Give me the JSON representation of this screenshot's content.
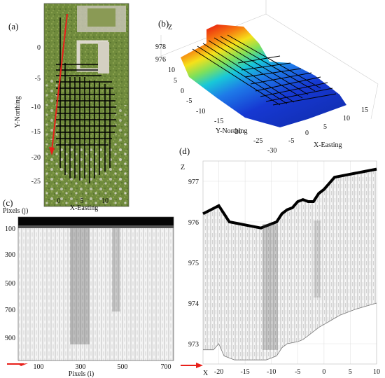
{
  "panels": {
    "a": {
      "letter": "(a)",
      "ylabel": "Y-Northing",
      "xlabel": "X-Easting",
      "yticks": [
        "0",
        "-5",
        "-10",
        "-15",
        "-20",
        "-25"
      ],
      "xticks": [
        "0",
        "5",
        "10"
      ]
    },
    "b": {
      "letter": "(b)",
      "zlabel": "Z",
      "zticks": [
        "978",
        "976"
      ],
      "ylabel": "Y-Northing",
      "xlabel": "X-Easting",
      "yticks": [
        "10",
        "5",
        "0",
        "-5",
        "-10",
        "-15",
        "-20",
        "-25",
        "-30"
      ],
      "xticks": [
        "-5",
        "0",
        "5",
        "10",
        "15"
      ],
      "colors": {
        "high": "#e81c10",
        "mid": "#f5e11a",
        "low": "#1638d2"
      }
    },
    "c": {
      "letter": "(c)",
      "ylabel": "Pixels (j)",
      "xlabel": "Pixels (i)",
      "yticks": [
        "100",
        "300",
        "500",
        "700",
        "900"
      ],
      "xticks": [
        "100",
        "300",
        "500",
        "700"
      ]
    },
    "d": {
      "letter": "(d)",
      "zlabel": "Z",
      "xlabel": "X",
      "yticks": [
        "977",
        "976",
        "975",
        "974",
        "973"
      ],
      "xticks": [
        "-20",
        "-15",
        "-10",
        "-5",
        "0",
        "5",
        "10"
      ]
    }
  },
  "colors": {
    "arrow": "#e8201a",
    "grid_lines": "#000000"
  },
  "chart_data": [
    {
      "type": "surface",
      "panel": "b",
      "zlabel": "Z",
      "xlabel": "X-Easting",
      "ylabel": "Y-Northing",
      "zlim": [
        975,
        979
      ],
      "colormap": "jet",
      "x_ticks": [
        -5,
        0,
        5,
        10,
        15
      ],
      "y_ticks": [
        10,
        5,
        0,
        -5,
        -10,
        -15,
        -20,
        -25,
        -30
      ],
      "z_ticks": [
        976,
        978
      ]
    },
    {
      "type": "line",
      "panel": "d",
      "zlabel": "Z",
      "xlabel": "X",
      "xlim": [
        -23,
        10
      ],
      "ylim": [
        972.5,
        977.5
      ],
      "x_ticks": [
        -20,
        -15,
        -10,
        -5,
        0,
        5,
        10
      ],
      "y_ticks": [
        973,
        974,
        975,
        976,
        977
      ],
      "series": [
        {
          "x": [
            -23,
            -21.5,
            -20,
            -19,
            -18,
            -16,
            -14,
            -12,
            -11,
            -10,
            -9,
            -8,
            -7,
            -6,
            -5,
            -4,
            -3,
            -2,
            -1,
            0,
            1,
            2,
            4,
            6,
            8,
            10
          ],
          "y": [
            976.2,
            976.3,
            976.4,
            976.2,
            976.0,
            975.95,
            975.9,
            975.85,
            975.9,
            975.95,
            976.0,
            976.2,
            976.3,
            976.35,
            976.5,
            976.55,
            976.5,
            976.5,
            976.7,
            976.8,
            976.95,
            977.1,
            977.15,
            977.2,
            977.25,
            977.3
          ]
        },
        {
          "x": [
            -23,
            -21,
            -20,
            -19,
            -17,
            -15,
            -13,
            -11,
            -9,
            -8,
            -7,
            -5,
            -4,
            -3,
            -1,
            1,
            3,
            6,
            10
          ],
          "y": [
            972.85,
            972.85,
            973.0,
            972.7,
            972.6,
            972.6,
            972.6,
            972.6,
            972.7,
            972.9,
            973.0,
            973.05,
            973.1,
            973.2,
            973.4,
            973.55,
            973.7,
            973.85,
            974.0
          ]
        }
      ]
    }
  ]
}
